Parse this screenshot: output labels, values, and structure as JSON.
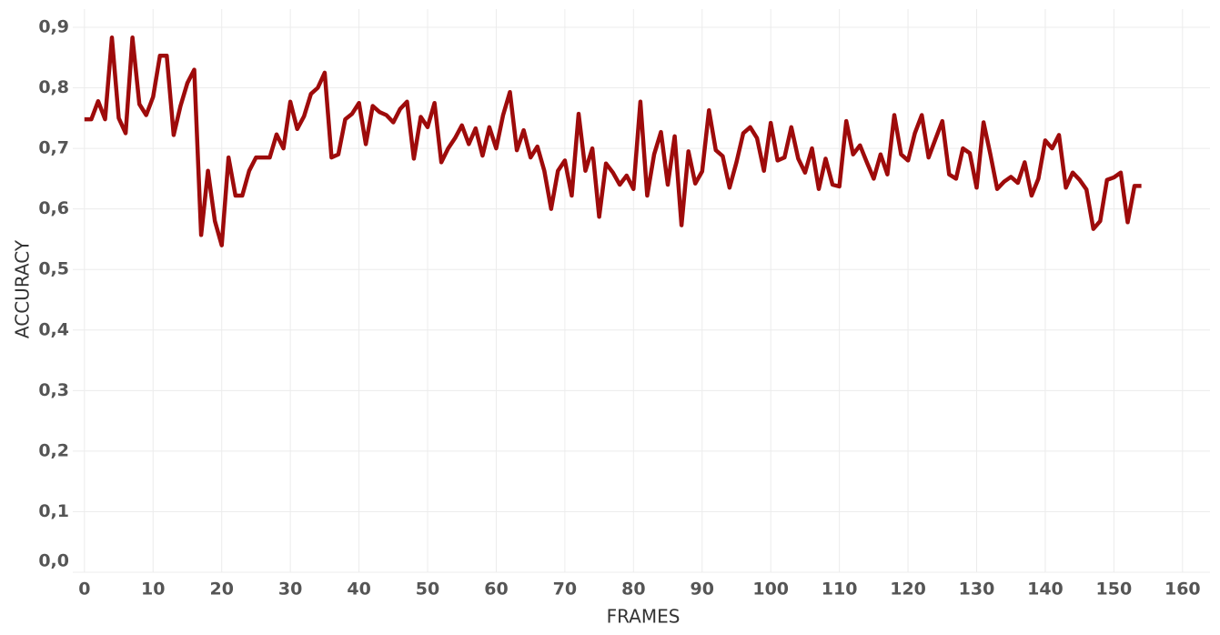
{
  "chart_data": {
    "type": "line",
    "xlabel": "FRAMES",
    "ylabel": "ACCURACY",
    "x": [
      0,
      1,
      2,
      3,
      4,
      5,
      6,
      7,
      8,
      9,
      10,
      11,
      12,
      13,
      14,
      15,
      16,
      17,
      18,
      19,
      20,
      21,
      22,
      23,
      24,
      25,
      26,
      27,
      28,
      29,
      30,
      31,
      32,
      33,
      34,
      35,
      36,
      37,
      38,
      39,
      40,
      41,
      42,
      43,
      44,
      45,
      46,
      47,
      48,
      49,
      50,
      51,
      52,
      53,
      54,
      55,
      56,
      57,
      58,
      59,
      60,
      61,
      62,
      63,
      64,
      65,
      66,
      67,
      68,
      69,
      70,
      71,
      72,
      73,
      74,
      75,
      76,
      77,
      78,
      79,
      80,
      81,
      82,
      83,
      84,
      85,
      86,
      87,
      88,
      89,
      90,
      91,
      92,
      93,
      94,
      95,
      96,
      97,
      98,
      99,
      100,
      101,
      102,
      103,
      104,
      105,
      106,
      107,
      108,
      109,
      110,
      111,
      112,
      113,
      114,
      115,
      116,
      117,
      118,
      119,
      120,
      121,
      122,
      123,
      124,
      125,
      126,
      127,
      128,
      129,
      130,
      131,
      132,
      133,
      134,
      135,
      136,
      137,
      138,
      139,
      140,
      141,
      142,
      143,
      144,
      145,
      146,
      147,
      148,
      149,
      150,
      151,
      152,
      153,
      154
    ],
    "series": [
      {
        "name": "ACCURACY",
        "color": "#9e0b0b",
        "values": [
          0.748,
          0.748,
          0.778,
          0.748,
          0.883,
          0.75,
          0.725,
          0.883,
          0.773,
          0.755,
          0.785,
          0.853,
          0.853,
          0.722,
          0.77,
          0.808,
          0.83,
          0.557,
          0.663,
          0.58,
          0.54,
          0.685,
          0.622,
          0.622,
          0.663,
          0.685,
          0.685,
          0.685,
          0.723,
          0.7,
          0.777,
          0.732,
          0.753,
          0.79,
          0.8,
          0.825,
          0.685,
          0.69,
          0.748,
          0.757,
          0.775,
          0.707,
          0.77,
          0.76,
          0.755,
          0.743,
          0.765,
          0.777,
          0.683,
          0.752,
          0.735,
          0.775,
          0.677,
          0.7,
          0.717,
          0.738,
          0.707,
          0.733,
          0.688,
          0.735,
          0.7,
          0.755,
          0.793,
          0.697,
          0.73,
          0.685,
          0.703,
          0.663,
          0.6,
          0.663,
          0.68,
          0.622,
          0.757,
          0.663,
          0.7,
          0.587,
          0.675,
          0.66,
          0.64,
          0.655,
          0.633,
          0.777,
          0.622,
          0.69,
          0.727,
          0.64,
          0.72,
          0.573,
          0.695,
          0.642,
          0.662,
          0.763,
          0.697,
          0.687,
          0.635,
          0.677,
          0.725,
          0.735,
          0.717,
          0.663,
          0.742,
          0.68,
          0.685,
          0.735,
          0.683,
          0.66,
          0.7,
          0.633,
          0.683,
          0.64,
          0.637,
          0.745,
          0.69,
          0.705,
          0.677,
          0.65,
          0.69,
          0.657,
          0.755,
          0.69,
          0.68,
          0.725,
          0.755,
          0.685,
          0.715,
          0.745,
          0.657,
          0.65,
          0.7,
          0.692,
          0.635,
          0.743,
          0.69,
          0.633,
          0.645,
          0.653,
          0.643,
          0.677,
          0.622,
          0.65,
          0.713,
          0.7,
          0.722,
          0.635,
          0.66,
          0.648,
          0.632,
          0.567,
          0.58,
          0.648,
          0.652,
          0.66,
          0.578,
          0.638,
          0.638
        ]
      }
    ],
    "xlim": [
      -1.7,
      164
    ],
    "xticks": [
      0,
      10,
      20,
      30,
      40,
      50,
      60,
      70,
      80,
      90,
      100,
      110,
      120,
      130,
      140,
      150,
      160
    ],
    "ylim": [
      0,
      0.93
    ],
    "yticks": [
      {
        "value": 0,
        "label": "0,0"
      },
      {
        "value": 0.1,
        "label": "0,1"
      },
      {
        "value": 0.2,
        "label": "0,2"
      },
      {
        "value": 0.3,
        "label": "0,3"
      },
      {
        "value": 0.4,
        "label": "0,4"
      },
      {
        "value": 0.5,
        "label": "0,5"
      },
      {
        "value": 0.6,
        "label": "0,6"
      },
      {
        "value": 0.7,
        "label": "0,7"
      },
      {
        "value": 0.8,
        "label": "0,8"
      },
      {
        "value": 0.9,
        "label": "0,9"
      }
    ],
    "grid": true
  }
}
